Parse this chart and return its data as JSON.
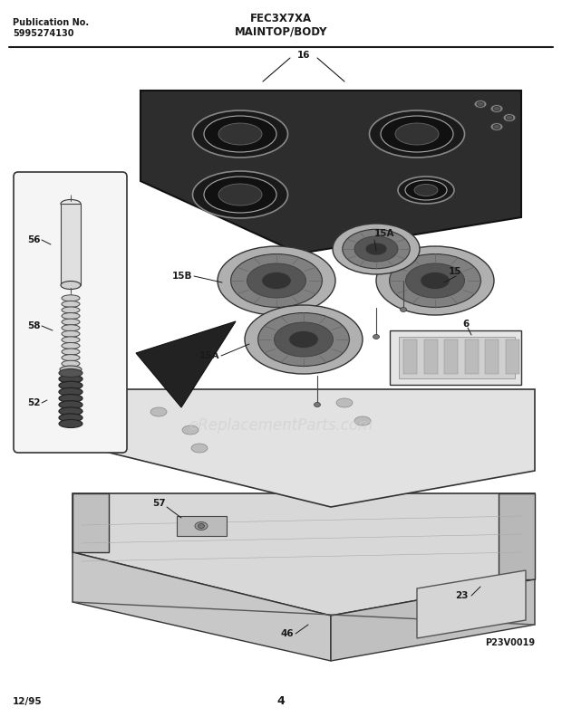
{
  "title": "FEC3X7XA",
  "subtitle": "MAINTOP/BODY",
  "pub_label": "Publication No.",
  "pub_number": "5995274130",
  "date_label": "12/95",
  "page_number": "4",
  "image_code": "P23V0019",
  "bg_color": "#ffffff",
  "line_color": "#1a1a1a",
  "watermark": "eReplacementParts.com"
}
